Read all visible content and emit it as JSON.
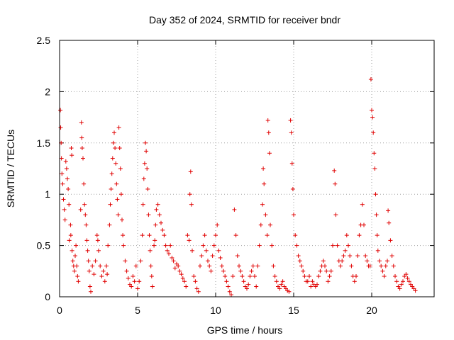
{
  "chart_data": {
    "type": "scatter",
    "title": "Day 352 of 2024, SRMTID for receiver bndr",
    "xlabel": "GPS time / hours",
    "ylabel": "SRMTID / TECUs",
    "xlim": [
      0,
      24
    ],
    "ylim": [
      0,
      2.5
    ],
    "x_ticks": [
      0,
      5,
      10,
      15,
      20
    ],
    "x_tick_labels": [
      "0",
      "5",
      "10",
      "15",
      "20"
    ],
    "y_ticks": [
      0,
      0.5,
      1,
      1.5,
      2,
      2.5
    ],
    "y_tick_labels": [
      "0",
      "0.5",
      "1",
      "1.5",
      "2",
      "2.5"
    ],
    "grid": true,
    "marker": "+",
    "color": "#e00000",
    "series": [
      {
        "name": "SRMTID",
        "points": [
          [
            0.05,
            1.82
          ],
          [
            0.07,
            1.65
          ],
          [
            0.1,
            1.5
          ],
          [
            0.12,
            1.35
          ],
          [
            0.15,
            1.2
          ],
          [
            0.2,
            1.1
          ],
          [
            0.25,
            0.95
          ],
          [
            0.3,
            0.85
          ],
          [
            0.35,
            0.75
          ],
          [
            0.4,
            1.32
          ],
          [
            0.45,
            1.25
          ],
          [
            0.5,
            1.15
          ],
          [
            0.55,
            1.05
          ],
          [
            0.6,
            0.9
          ],
          [
            0.62,
            0.55
          ],
          [
            0.7,
            0.7
          ],
          [
            0.72,
            0.6
          ],
          [
            0.75,
            1.45
          ],
          [
            0.78,
            1.38
          ],
          [
            0.8,
            0.45
          ],
          [
            0.85,
            0.35
          ],
          [
            0.9,
            0.3
          ],
          [
            0.95,
            0.25
          ],
          [
            1.0,
            0.4
          ],
          [
            1.05,
            0.5
          ],
          [
            1.1,
            0.3
          ],
          [
            1.15,
            0.2
          ],
          [
            1.2,
            0.15
          ],
          [
            1.35,
            0.85
          ],
          [
            1.4,
            1.7
          ],
          [
            1.42,
            1.55
          ],
          [
            1.45,
            1.45
          ],
          [
            1.5,
            1.35
          ],
          [
            1.55,
            1.1
          ],
          [
            1.6,
            0.9
          ],
          [
            1.65,
            0.8
          ],
          [
            1.7,
            0.7
          ],
          [
            1.75,
            0.55
          ],
          [
            1.8,
            0.45
          ],
          [
            1.85,
            0.35
          ],
          [
            1.9,
            0.25
          ],
          [
            1.95,
            0.1
          ],
          [
            2.0,
            0.05
          ],
          [
            2.1,
            0.3
          ],
          [
            2.2,
            0.22
          ],
          [
            2.3,
            0.35
          ],
          [
            2.4,
            0.6
          ],
          [
            2.45,
            0.55
          ],
          [
            2.5,
            0.45
          ],
          [
            2.6,
            0.3
          ],
          [
            2.7,
            0.2
          ],
          [
            2.8,
            0.25
          ],
          [
            2.9,
            0.15
          ],
          [
            3.0,
            0.3
          ],
          [
            3.05,
            0.22
          ],
          [
            3.1,
            0.5
          ],
          [
            3.2,
            0.7
          ],
          [
            3.25,
            0.9
          ],
          [
            3.3,
            1.05
          ],
          [
            3.35,
            1.2
          ],
          [
            3.4,
            1.35
          ],
          [
            3.45,
            1.5
          ],
          [
            3.5,
            1.6
          ],
          [
            3.55,
            1.45
          ],
          [
            3.6,
            1.3
          ],
          [
            3.65,
            1.1
          ],
          [
            3.7,
            0.95
          ],
          [
            3.75,
            0.8
          ],
          [
            3.8,
            1.65
          ],
          [
            3.85,
            1.45
          ],
          [
            3.9,
            1.25
          ],
          [
            3.95,
            1.0
          ],
          [
            4.0,
            0.75
          ],
          [
            4.05,
            0.6
          ],
          [
            4.1,
            0.5
          ],
          [
            4.2,
            0.35
          ],
          [
            4.3,
            0.25
          ],
          [
            4.4,
            0.18
          ],
          [
            4.5,
            0.12
          ],
          [
            4.6,
            0.1
          ],
          [
            4.7,
            0.2
          ],
          [
            4.8,
            0.15
          ],
          [
            4.9,
            0.3
          ],
          [
            5.0,
            0.08
          ],
          [
            5.1,
            0.15
          ],
          [
            5.2,
            0.35
          ],
          [
            5.3,
            0.6
          ],
          [
            5.35,
            0.9
          ],
          [
            5.4,
            1.15
          ],
          [
            5.45,
            1.3
          ],
          [
            5.5,
            1.5
          ],
          [
            5.55,
            1.42
          ],
          [
            5.6,
            1.25
          ],
          [
            5.65,
            1.05
          ],
          [
            5.7,
            0.8
          ],
          [
            5.75,
            0.6
          ],
          [
            5.8,
            0.45
          ],
          [
            5.85,
            0.3
          ],
          [
            5.9,
            0.2
          ],
          [
            5.95,
            0.1
          ],
          [
            6.05,
            0.5
          ],
          [
            6.1,
            0.55
          ],
          [
            6.15,
            0.7
          ],
          [
            6.2,
            0.85
          ],
          [
            6.3,
            0.9
          ],
          [
            6.4,
            0.8
          ],
          [
            6.5,
            0.72
          ],
          [
            6.6,
            0.65
          ],
          [
            6.7,
            0.6
          ],
          [
            6.8,
            0.5
          ],
          [
            6.9,
            0.45
          ],
          [
            7.0,
            0.42
          ],
          [
            7.1,
            0.5
          ],
          [
            7.2,
            0.38
          ],
          [
            7.3,
            0.35
          ],
          [
            7.4,
            0.28
          ],
          [
            7.5,
            0.32
          ],
          [
            7.6,
            0.3
          ],
          [
            7.7,
            0.25
          ],
          [
            7.8,
            0.22
          ],
          [
            7.9,
            0.18
          ],
          [
            8.0,
            0.15
          ],
          [
            8.1,
            0.1
          ],
          [
            8.2,
            0.6
          ],
          [
            8.3,
            0.55
          ],
          [
            8.35,
            1.0
          ],
          [
            8.4,
            1.22
          ],
          [
            8.45,
            0.9
          ],
          [
            8.5,
            0.45
          ],
          [
            8.6,
            0.2
          ],
          [
            8.7,
            0.15
          ],
          [
            8.8,
            0.08
          ],
          [
            8.9,
            0.05
          ],
          [
            9.0,
            0.3
          ],
          [
            9.1,
            0.4
          ],
          [
            9.2,
            0.5
          ],
          [
            9.3,
            0.6
          ],
          [
            9.4,
            0.45
          ],
          [
            9.5,
            0.35
          ],
          [
            9.6,
            0.3
          ],
          [
            9.7,
            0.25
          ],
          [
            9.8,
            0.4
          ],
          [
            9.9,
            0.5
          ],
          [
            10.0,
            0.6
          ],
          [
            10.1,
            0.7
          ],
          [
            10.2,
            0.45
          ],
          [
            10.3,
            0.38
          ],
          [
            10.4,
            0.3
          ],
          [
            10.5,
            0.25
          ],
          [
            10.6,
            0.2
          ],
          [
            10.7,
            0.15
          ],
          [
            10.8,
            0.1
          ],
          [
            10.9,
            0.05
          ],
          [
            11.0,
            0.02
          ],
          [
            11.1,
            0.2
          ],
          [
            11.2,
            0.85
          ],
          [
            11.3,
            0.6
          ],
          [
            11.4,
            0.4
          ],
          [
            11.5,
            0.3
          ],
          [
            11.6,
            0.25
          ],
          [
            11.7,
            0.2
          ],
          [
            11.8,
            0.15
          ],
          [
            11.9,
            0.1
          ],
          [
            12.0,
            0.08
          ],
          [
            12.1,
            0.12
          ],
          [
            12.2,
            0.2
          ],
          [
            12.3,
            0.25
          ],
          [
            12.4,
            0.3
          ],
          [
            12.5,
            0.2
          ],
          [
            12.6,
            0.1
          ],
          [
            12.7,
            0.3
          ],
          [
            12.8,
            0.5
          ],
          [
            12.9,
            0.7
          ],
          [
            13.0,
            0.9
          ],
          [
            13.05,
            1.25
          ],
          [
            13.1,
            1.1
          ],
          [
            13.2,
            0.8
          ],
          [
            13.3,
            0.6
          ],
          [
            13.35,
            1.72
          ],
          [
            13.4,
            1.6
          ],
          [
            13.45,
            1.4
          ],
          [
            13.5,
            0.7
          ],
          [
            13.6,
            0.5
          ],
          [
            13.7,
            0.3
          ],
          [
            13.8,
            0.2
          ],
          [
            13.9,
            0.15
          ],
          [
            14.0,
            0.1
          ],
          [
            14.1,
            0.08
          ],
          [
            14.2,
            0.12
          ],
          [
            14.3,
            0.15
          ],
          [
            14.4,
            0.1
          ],
          [
            14.5,
            0.08
          ],
          [
            14.6,
            0.06
          ],
          [
            14.7,
            0.05
          ],
          [
            14.8,
            1.72
          ],
          [
            14.85,
            1.6
          ],
          [
            14.9,
            1.3
          ],
          [
            14.95,
            1.05
          ],
          [
            15.0,
            0.8
          ],
          [
            15.1,
            0.6
          ],
          [
            15.2,
            0.5
          ],
          [
            15.3,
            0.4
          ],
          [
            15.4,
            0.35
          ],
          [
            15.5,
            0.3
          ],
          [
            15.6,
            0.25
          ],
          [
            15.7,
            0.2
          ],
          [
            15.8,
            0.15
          ],
          [
            15.9,
            0.15
          ],
          [
            16.0,
            0.2
          ],
          [
            16.1,
            0.1
          ],
          [
            16.2,
            0.15
          ],
          [
            16.3,
            0.12
          ],
          [
            16.4,
            0.1
          ],
          [
            16.5,
            0.12
          ],
          [
            16.6,
            0.2
          ],
          [
            16.7,
            0.25
          ],
          [
            16.8,
            0.3
          ],
          [
            16.9,
            0.35
          ],
          [
            17.0,
            0.3
          ],
          [
            17.1,
            0.25
          ],
          [
            17.2,
            0.15
          ],
          [
            17.3,
            0.2
          ],
          [
            17.4,
            0.25
          ],
          [
            17.5,
            0.5
          ],
          [
            17.6,
            1.23
          ],
          [
            17.65,
            1.1
          ],
          [
            17.7,
            0.8
          ],
          [
            17.8,
            0.5
          ],
          [
            17.9,
            0.35
          ],
          [
            18.0,
            0.3
          ],
          [
            18.1,
            0.35
          ],
          [
            18.2,
            0.4
          ],
          [
            18.3,
            0.45
          ],
          [
            18.4,
            0.6
          ],
          [
            18.5,
            0.5
          ],
          [
            18.6,
            0.4
          ],
          [
            18.7,
            0.3
          ],
          [
            18.8,
            0.2
          ],
          [
            18.9,
            0.15
          ],
          [
            19.0,
            0.2
          ],
          [
            19.1,
            0.4
          ],
          [
            19.2,
            0.6
          ],
          [
            19.3,
            0.7
          ],
          [
            19.4,
            0.9
          ],
          [
            19.5,
            0.7
          ],
          [
            19.6,
            0.4
          ],
          [
            19.7,
            0.35
          ],
          [
            19.8,
            0.3
          ],
          [
            19.9,
            0.3
          ],
          [
            19.95,
            2.12
          ],
          [
            20.0,
            1.82
          ],
          [
            20.05,
            1.75
          ],
          [
            20.1,
            1.6
          ],
          [
            20.15,
            1.4
          ],
          [
            20.2,
            1.25
          ],
          [
            20.25,
            1.0
          ],
          [
            20.3,
            0.8
          ],
          [
            20.35,
            0.6
          ],
          [
            20.4,
            0.45
          ],
          [
            20.5,
            0.35
          ],
          [
            20.6,
            0.3
          ],
          [
            20.7,
            0.25
          ],
          [
            20.8,
            0.2
          ],
          [
            20.9,
            0.3
          ],
          [
            21.0,
            0.35
          ],
          [
            21.05,
            0.84
          ],
          [
            21.1,
            0.72
          ],
          [
            21.2,
            0.55
          ],
          [
            21.3,
            0.4
          ],
          [
            21.4,
            0.3
          ],
          [
            21.5,
            0.2
          ],
          [
            21.6,
            0.15
          ],
          [
            21.7,
            0.1
          ],
          [
            21.8,
            0.08
          ],
          [
            21.9,
            0.12
          ],
          [
            22.0,
            0.15
          ],
          [
            22.1,
            0.2
          ],
          [
            22.2,
            0.22
          ],
          [
            22.3,
            0.18
          ],
          [
            22.4,
            0.15
          ],
          [
            22.5,
            0.12
          ],
          [
            22.6,
            0.1
          ],
          [
            22.7,
            0.08
          ],
          [
            22.8,
            0.06
          ]
        ]
      }
    ]
  }
}
